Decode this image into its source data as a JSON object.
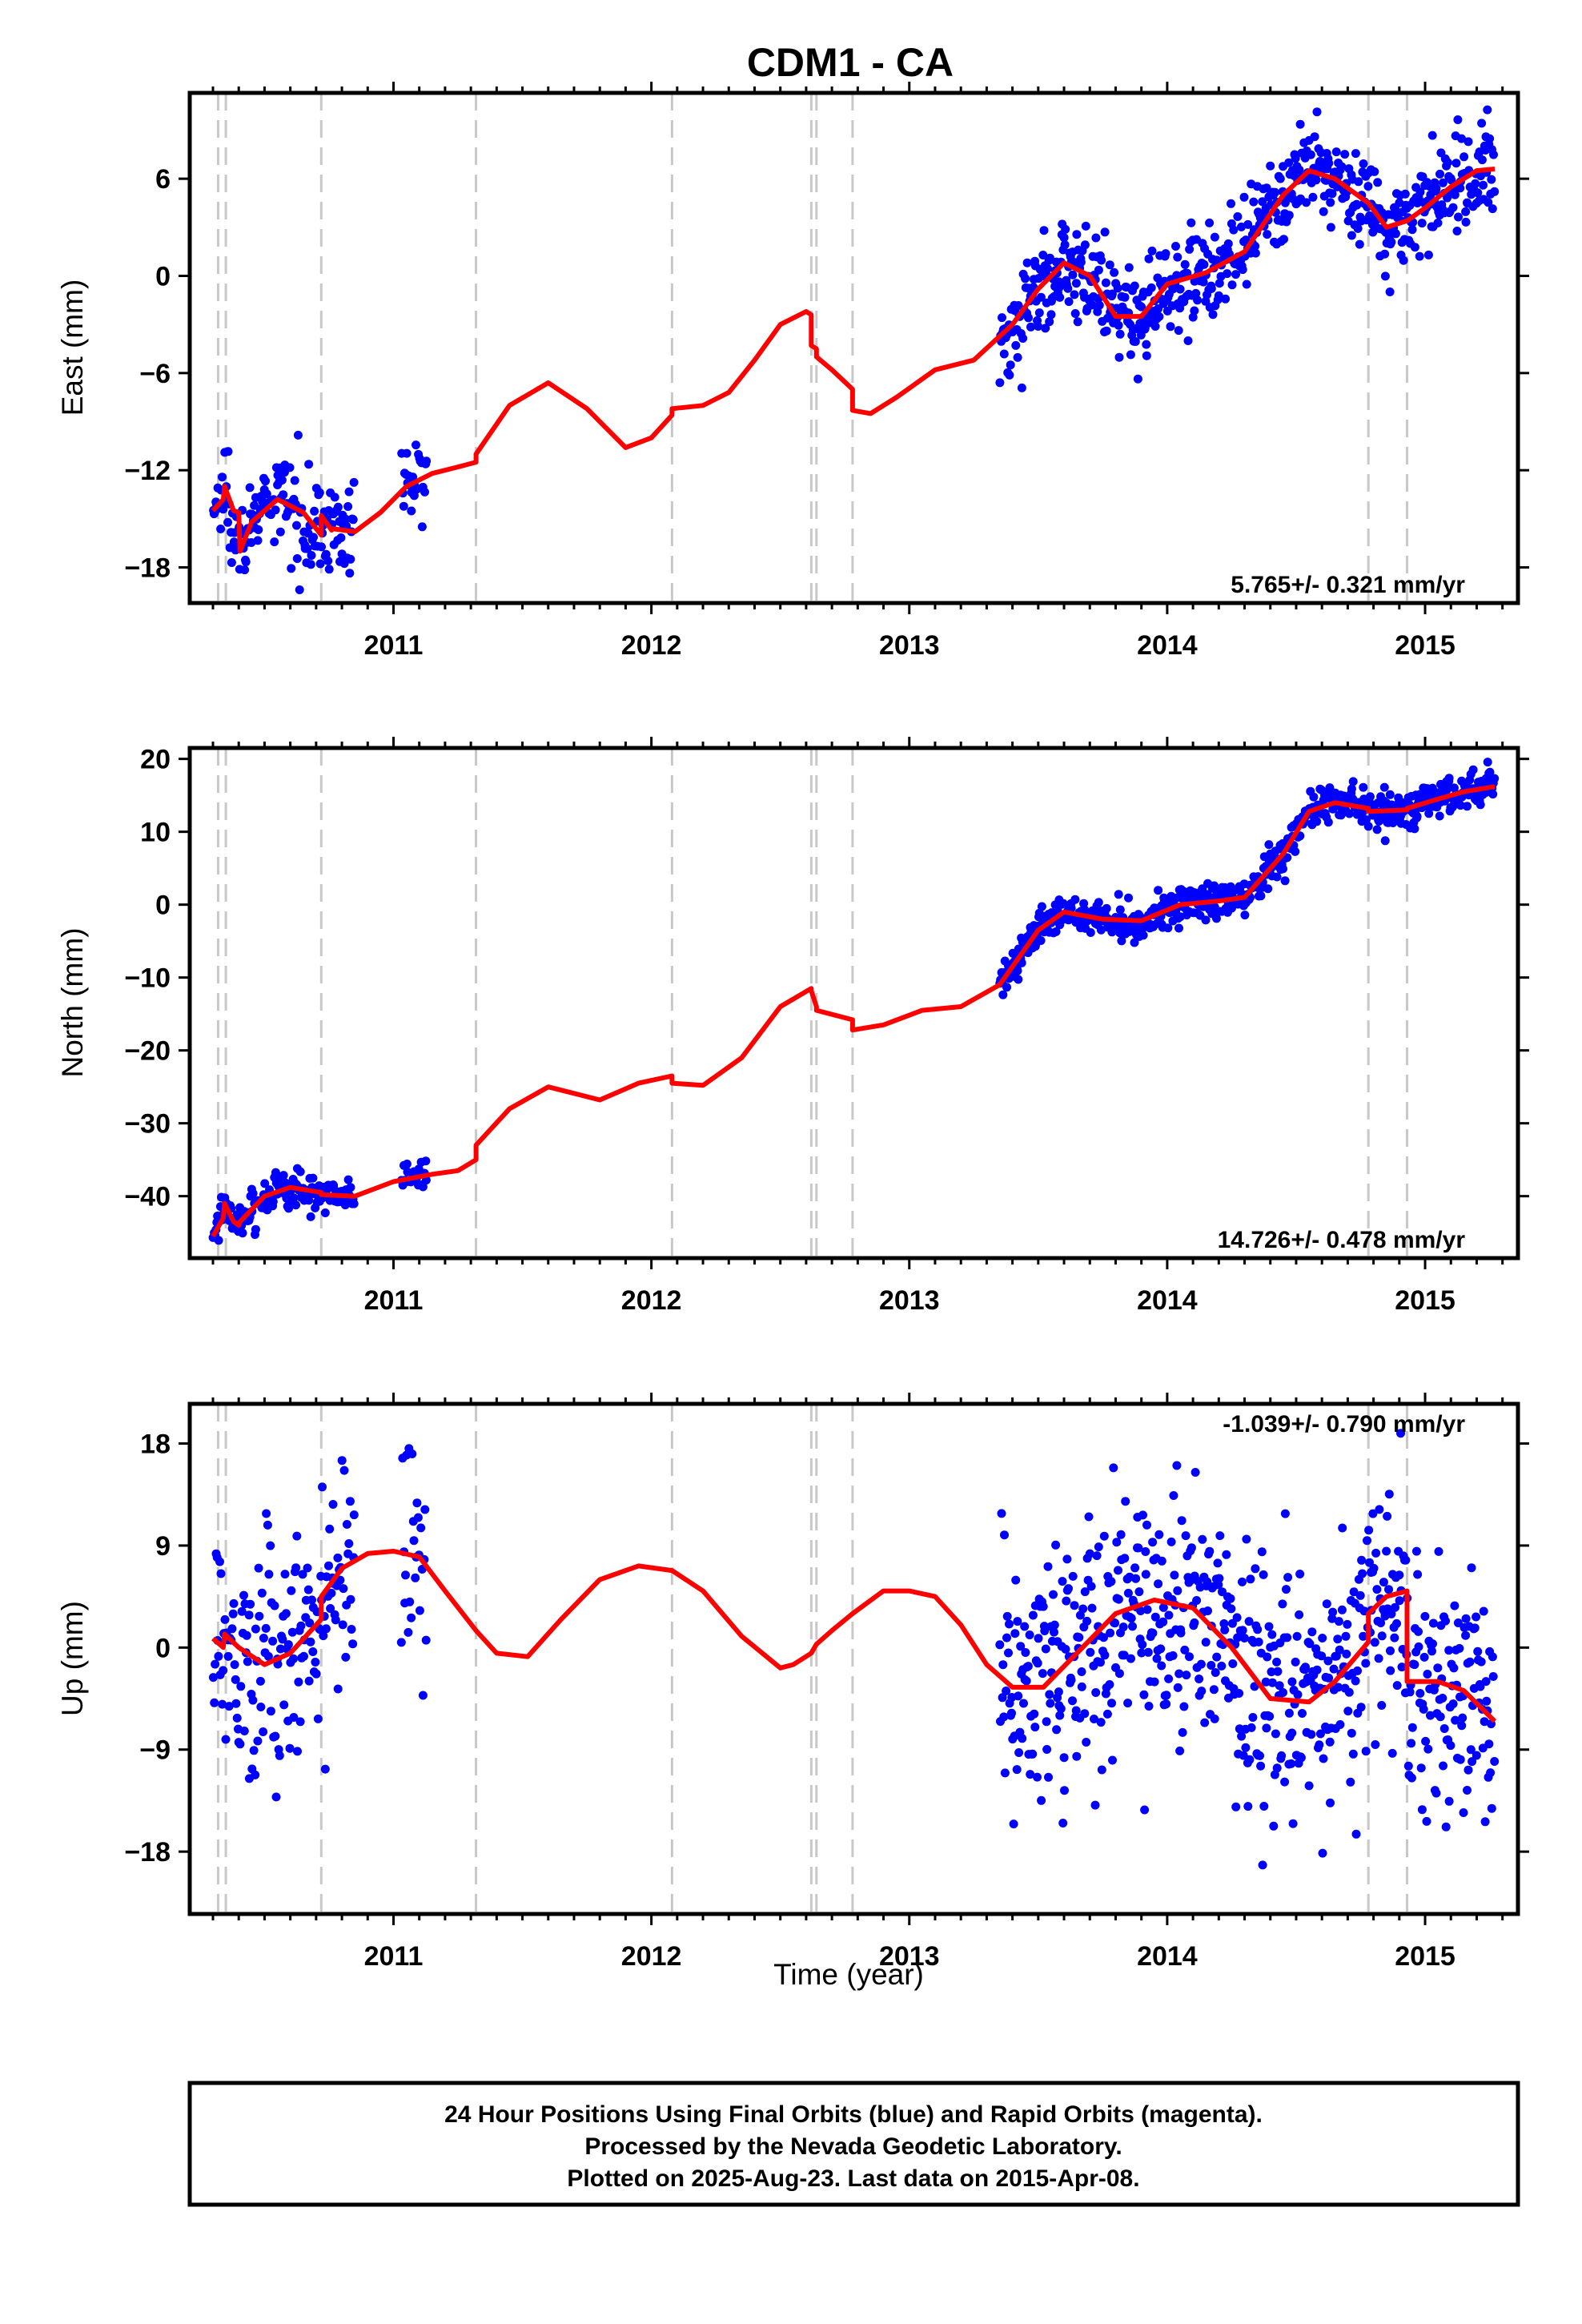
{
  "title": "CDM1 - CA",
  "xlabel": "Time (year)",
  "footer": {
    "line1": "24 Hour Positions Using Final Orbits (blue) and Rapid Orbits (magenta).",
    "line2": "Processed by the Nevada Geodetic Laboratory.",
    "line3": "Plotted on 2025-Aug-23. Last data on 2015-Apr-08."
  },
  "colors": {
    "points": "#0000ff",
    "model": "#ff0000",
    "steps": "#c8c8c8",
    "axes": "#000000"
  },
  "chart_data": [
    {
      "type": "scatter",
      "ylabel": "East (mm)",
      "rate_label": "5.765+/- 0.321 mm/yr",
      "xlim": [
        2010.21,
        2015.36
      ],
      "ylim": [
        -20.2,
        11.3
      ],
      "yticks": [
        -18,
        -12,
        -6,
        0,
        6
      ],
      "ytick_labels": [
        "−18",
        "−12",
        "−6",
        "0",
        "6"
      ],
      "xticks": [
        2011,
        2012,
        2013,
        2014,
        2015
      ],
      "xtick_labels": [
        "2011",
        "2012",
        "2013",
        "2014",
        "2015"
      ],
      "step_epochs": [
        2010.32,
        2010.35,
        2010.72,
        2011.32,
        2012.08,
        2012.62,
        2012.64,
        2012.78,
        2014.78,
        2014.93
      ],
      "data_segments": [
        {
          "start": 2010.3,
          "end": 2010.85,
          "n": 160
        },
        {
          "start": 2011.03,
          "end": 2011.13,
          "n": 25
        },
        {
          "start": 2013.35,
          "end": 2015.27,
          "n": 650
        }
      ],
      "scatter_sd": 1.4,
      "series": [
        {
          "name": "model",
          "x": [
            2010.3,
            2010.34,
            2010.345,
            2010.38,
            2010.4,
            2010.405,
            2010.45,
            2010.55,
            2010.65,
            2010.72,
            2010.72,
            2010.76,
            2010.76,
            2010.85,
            2010.95,
            2011.05,
            2011.15,
            2011.25,
            2011.32,
            2011.32,
            2011.45,
            2011.6,
            2011.75,
            2011.9,
            2012.0,
            2012.08,
            2012.08,
            2012.2,
            2012.3,
            2012.4,
            2012.5,
            2012.6,
            2012.62,
            2012.62,
            2012.64,
            2012.64,
            2012.7,
            2012.78,
            2012.78,
            2012.85,
            2012.95,
            2013.1,
            2013.25,
            2013.4,
            2013.5,
            2013.6,
            2013.7,
            2013.8,
            2013.9,
            2014.0,
            2014.15,
            2014.3,
            2014.45,
            2014.55,
            2014.65,
            2014.78,
            2014.78,
            2014.85,
            2014.93,
            2014.93,
            2015.0,
            2015.1,
            2015.2,
            2015.27
          ],
          "y": [
            -14.5,
            -13.8,
            -13.0,
            -14.5,
            -14.6,
            -17.0,
            -15.2,
            -13.8,
            -14.6,
            -16.0,
            -14.8,
            -15.7,
            -15.6,
            -15.8,
            -14.6,
            -13.0,
            -12.2,
            -11.8,
            -11.5,
            -11.0,
            -8.0,
            -6.6,
            -8.2,
            -10.6,
            -10.0,
            -8.6,
            -8.2,
            -8.0,
            -7.2,
            -5.2,
            -3.0,
            -2.2,
            -2.4,
            -4.3,
            -4.5,
            -5.0,
            -5.8,
            -7.0,
            -8.3,
            -8.5,
            -7.5,
            -5.8,
            -5.2,
            -3.0,
            -0.8,
            0.8,
            0.0,
            -2.5,
            -2.5,
            -0.5,
            0.2,
            1.5,
            5.0,
            6.5,
            6.0,
            4.5,
            4.5,
            3.0,
            3.4,
            3.4,
            4.2,
            5.5,
            6.5,
            6.6
          ]
        }
      ]
    },
    {
      "type": "scatter",
      "ylabel": "North (mm)",
      "rate_label": "14.726+/- 0.478 mm/yr",
      "xlim": [
        2010.21,
        2015.36
      ],
      "ylim": [
        -48.5,
        21.5
      ],
      "yticks": [
        -40,
        -30,
        -20,
        -10,
        0,
        10,
        20
      ],
      "ytick_labels": [
        "−40",
        "−30",
        "−20",
        "−10",
        "0",
        "10",
        "20"
      ],
      "xticks": [
        2011,
        2012,
        2013,
        2014,
        2015
      ],
      "xtick_labels": [
        "2011",
        "2012",
        "2013",
        "2014",
        "2015"
      ],
      "step_epochs": [
        2010.32,
        2010.35,
        2010.72,
        2011.32,
        2012.08,
        2012.62,
        2012.64,
        2012.78,
        2014.78,
        2014.93
      ],
      "data_segments": [
        {
          "start": 2010.3,
          "end": 2010.85,
          "n": 160
        },
        {
          "start": 2011.03,
          "end": 2011.13,
          "n": 25
        },
        {
          "start": 2013.35,
          "end": 2015.27,
          "n": 650
        }
      ],
      "scatter_sd": 1.3,
      "series": [
        {
          "name": "model",
          "x": [
            2010.3,
            2010.34,
            2010.345,
            2010.38,
            2010.4,
            2010.405,
            2010.5,
            2010.6,
            2010.72,
            2010.72,
            2010.85,
            2011.0,
            2011.15,
            2011.25,
            2011.32,
            2011.32,
            2011.45,
            2011.6,
            2011.8,
            2011.95,
            2012.08,
            2012.08,
            2012.2,
            2012.35,
            2012.5,
            2012.62,
            2012.62,
            2012.64,
            2012.64,
            2012.78,
            2012.78,
            2012.9,
            2013.05,
            2013.2,
            2013.35,
            2013.5,
            2013.6,
            2013.75,
            2013.9,
            2014.05,
            2014.2,
            2014.3,
            2014.45,
            2014.55,
            2014.65,
            2014.78,
            2014.78,
            2014.93,
            2014.93,
            2015.05,
            2015.15,
            2015.27
          ],
          "y": [
            -45.5,
            -43.0,
            -41.0,
            -43.5,
            -44.0,
            -43.5,
            -40.0,
            -38.8,
            -39.5,
            -39.8,
            -40.0,
            -38.0,
            -37.0,
            -36.5,
            -35.0,
            -33.0,
            -28.0,
            -25.0,
            -26.8,
            -24.5,
            -23.5,
            -24.5,
            -24.8,
            -21.0,
            -14.0,
            -11.5,
            -11.8,
            -14.0,
            -14.5,
            -15.8,
            -17.2,
            -16.5,
            -14.5,
            -14.0,
            -11.0,
            -3.5,
            -1.0,
            -2.0,
            -2.2,
            0.0,
            0.5,
            1.0,
            7.0,
            12.8,
            14.0,
            13.2,
            12.8,
            13.0,
            13.2,
            14.5,
            15.5,
            16.2
          ]
        }
      ]
    },
    {
      "type": "scatter",
      "ylabel": "Up (mm)",
      "rate_label": "-1.039+/- 0.790 mm/yr",
      "xlim": [
        2010.21,
        2015.36
      ],
      "ylim": [
        -23.5,
        21.5
      ],
      "yticks": [
        -18,
        -9,
        0,
        9,
        18
      ],
      "ytick_labels": [
        "−18",
        "−9",
        "0",
        "9",
        "18"
      ],
      "xticks": [
        2011,
        2012,
        2013,
        2014,
        2015
      ],
      "xtick_labels": [
        "2011",
        "2012",
        "2013",
        "2014",
        "2015"
      ],
      "step_epochs": [
        2010.32,
        2010.35,
        2010.72,
        2011.32,
        2012.08,
        2012.62,
        2012.64,
        2012.78,
        2014.78,
        2014.93
      ],
      "data_segments": [
        {
          "start": 2010.3,
          "end": 2010.85,
          "n": 160
        },
        {
          "start": 2011.03,
          "end": 2011.13,
          "n": 25
        },
        {
          "start": 2013.35,
          "end": 2015.27,
          "n": 650
        }
      ],
      "scatter_sd": 5.5,
      "series": [
        {
          "name": "model",
          "x": [
            2010.3,
            2010.34,
            2010.345,
            2010.4,
            2010.5,
            2010.6,
            2010.72,
            2010.72,
            2010.8,
            2010.9,
            2011.0,
            2011.1,
            2011.2,
            2011.32,
            2011.4,
            2011.52,
            2011.65,
            2011.8,
            2011.95,
            2012.08,
            2012.2,
            2012.35,
            2012.5,
            2012.55,
            2012.62,
            2012.64,
            2012.7,
            2012.78,
            2012.9,
            2013.0,
            2013.1,
            2013.2,
            2013.3,
            2013.4,
            2013.52,
            2013.65,
            2013.8,
            2013.95,
            2014.1,
            2014.25,
            2014.4,
            2014.55,
            2014.65,
            2014.78,
            2014.78,
            2014.85,
            2014.93,
            2014.93,
            2015.05,
            2015.15,
            2015.27
          ],
          "y": [
            0.8,
            0.0,
            1.2,
            0.0,
            -1.5,
            -0.5,
            2.5,
            4.5,
            7.0,
            8.3,
            8.5,
            8.0,
            5.0,
            1.5,
            -0.5,
            -0.8,
            2.5,
            6.0,
            7.2,
            6.8,
            5.0,
            1.0,
            -1.8,
            -1.5,
            -0.5,
            0.3,
            1.5,
            3.0,
            5.0,
            5.0,
            4.5,
            2.0,
            -1.5,
            -3.5,
            -3.5,
            -0.5,
            3.0,
            4.2,
            3.5,
            0.0,
            -4.5,
            -4.8,
            -3.0,
            0.5,
            3.0,
            4.5,
            5.0,
            -3.0,
            -3.0,
            -3.8,
            -6.5
          ]
        }
      ]
    }
  ]
}
